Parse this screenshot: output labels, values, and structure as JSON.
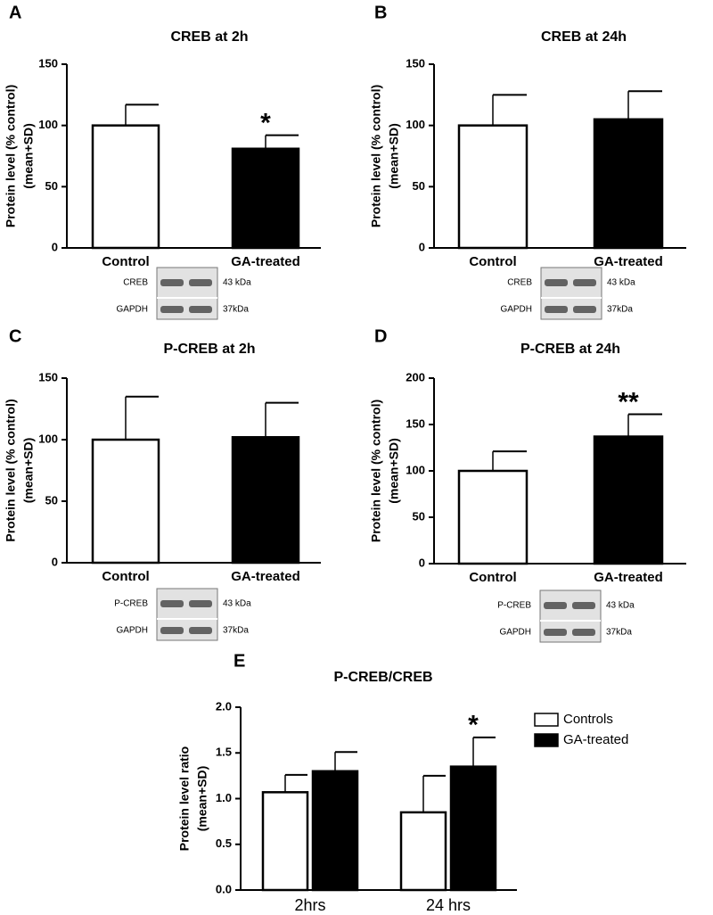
{
  "chart_data": [
    {
      "type": "bar",
      "panel": "A",
      "title": "CREB at 2h",
      "ylabel": [
        "Protein level (% control)",
        "(mean+SD)"
      ],
      "categories": [
        "Control",
        "GA-treated"
      ],
      "values": [
        100,
        81
      ],
      "errors": [
        17,
        11
      ],
      "colors": [
        "#ffffff",
        "#000000"
      ],
      "ylim": [
        0,
        150
      ],
      "yticks": [
        0,
        50,
        100,
        150
      ],
      "annotations": [
        {
          "text": "*",
          "category": 1
        }
      ],
      "blot": [
        {
          "protein": "CREB",
          "size": "43 kDa"
        },
        {
          "protein": "GAPDH",
          "size": "37kDa"
        }
      ]
    },
    {
      "type": "bar",
      "panel": "B",
      "title": "CREB at 24h",
      "ylabel": [
        "Protein level (% control)",
        "(mean+SD)"
      ],
      "categories": [
        "Control",
        "GA-treated"
      ],
      "values": [
        100,
        105
      ],
      "errors": [
        25,
        23
      ],
      "colors": [
        "#ffffff",
        "#000000"
      ],
      "ylim": [
        0,
        150
      ],
      "yticks": [
        0,
        50,
        100,
        150
      ],
      "annotations": [],
      "blot": [
        {
          "protein": "CREB",
          "size": "43 kDa"
        },
        {
          "protein": "GAPDH",
          "size": "37kDa"
        }
      ]
    },
    {
      "type": "bar",
      "panel": "C",
      "title": "P-CREB at 2h",
      "ylabel": [
        "Protein level (% control)",
        "(mean+SD)"
      ],
      "categories": [
        "Control",
        "GA-treated"
      ],
      "values": [
        100,
        102
      ],
      "errors": [
        35,
        28
      ],
      "colors": [
        "#ffffff",
        "#000000"
      ],
      "ylim": [
        0,
        150
      ],
      "yticks": [
        0,
        50,
        100,
        150
      ],
      "annotations": [],
      "blot": [
        {
          "protein": "P-CREB",
          "size": "43 kDa"
        },
        {
          "protein": "GAPDH",
          "size": "37kDa"
        }
      ]
    },
    {
      "type": "bar",
      "panel": "D",
      "title": "P-CREB at 24h",
      "ylabel": [
        "Protein level (% control)",
        "(mean+SD)"
      ],
      "categories": [
        "Control",
        "GA-treated"
      ],
      "values": [
        100,
        137
      ],
      "errors": [
        21,
        24
      ],
      "colors": [
        "#ffffff",
        "#000000"
      ],
      "ylim": [
        0,
        200
      ],
      "yticks": [
        0,
        50,
        100,
        150,
        200
      ],
      "annotations": [
        {
          "text": "**",
          "category": 1
        }
      ],
      "blot": [
        {
          "protein": "P-CREB",
          "size": "43 kDa"
        },
        {
          "protein": "GAPDH",
          "size": "37kDa"
        }
      ]
    },
    {
      "type": "grouped_bar",
      "panel": "E",
      "title": "P-CREB/CREB",
      "ylabel": [
        "Protein level ratio",
        "(mean+SD)"
      ],
      "categories": [
        "2hrs",
        "24 hrs"
      ],
      "series": [
        {
          "name": "Controls",
          "color": "#ffffff",
          "values": [
            1.07,
            0.85
          ],
          "errors": [
            0.19,
            0.4
          ]
        },
        {
          "name": "GA-treated",
          "color": "#000000",
          "values": [
            1.3,
            1.35
          ],
          "errors": [
            0.21,
            0.32
          ]
        }
      ],
      "ylim": [
        0,
        2
      ],
      "yticks": [
        {
          "value": 0,
          "label": "0.0"
        },
        0.5,
        {
          "value": 1,
          "label": "1.0"
        },
        1.5,
        {
          "value": 2,
          "label": "2.0"
        }
      ],
      "legend": "upper right",
      "annotations": [
        {
          "text": "*",
          "series": 1,
          "category": 1
        }
      ]
    }
  ]
}
